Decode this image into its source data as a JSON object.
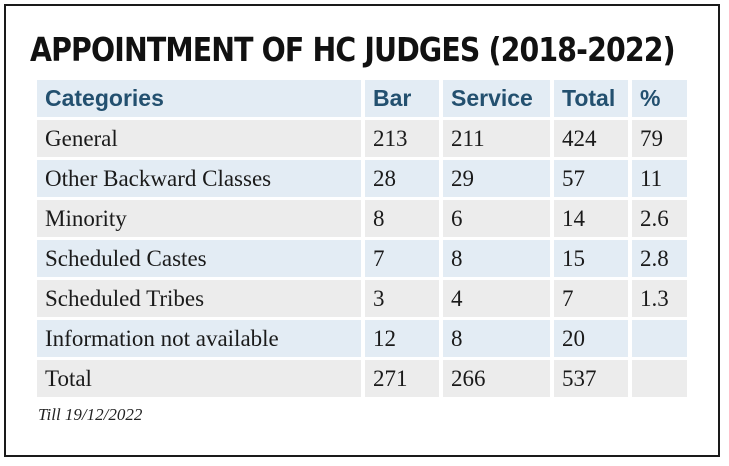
{
  "title": "APPOINTMENT OF HC JUDGES (2018-2022)",
  "table": {
    "headers": [
      "Categories",
      "Bar",
      "Service",
      "Total",
      "%"
    ],
    "rows": [
      [
        "General",
        "213",
        "211",
        "424",
        "79"
      ],
      [
        "Other Backward Classes",
        "28",
        "29",
        "57",
        "11"
      ],
      [
        "Minority",
        "8",
        "6",
        "14",
        "2.6"
      ],
      [
        "Scheduled Castes",
        "7",
        "8",
        "15",
        "2.8"
      ],
      [
        "Scheduled Tribes",
        "3",
        "4",
        "7",
        "1.3"
      ],
      [
        "Information not available",
        "12",
        "8",
        "20",
        ""
      ],
      [
        "Total",
        "271",
        "266",
        "537",
        ""
      ]
    ]
  },
  "footnote": "Till 19/12/2022",
  "colors": {
    "header_bg": "#e3ecf4",
    "header_text": "#23506f",
    "row_grey": "#ececec",
    "row_blue": "#e3ecf4"
  }
}
